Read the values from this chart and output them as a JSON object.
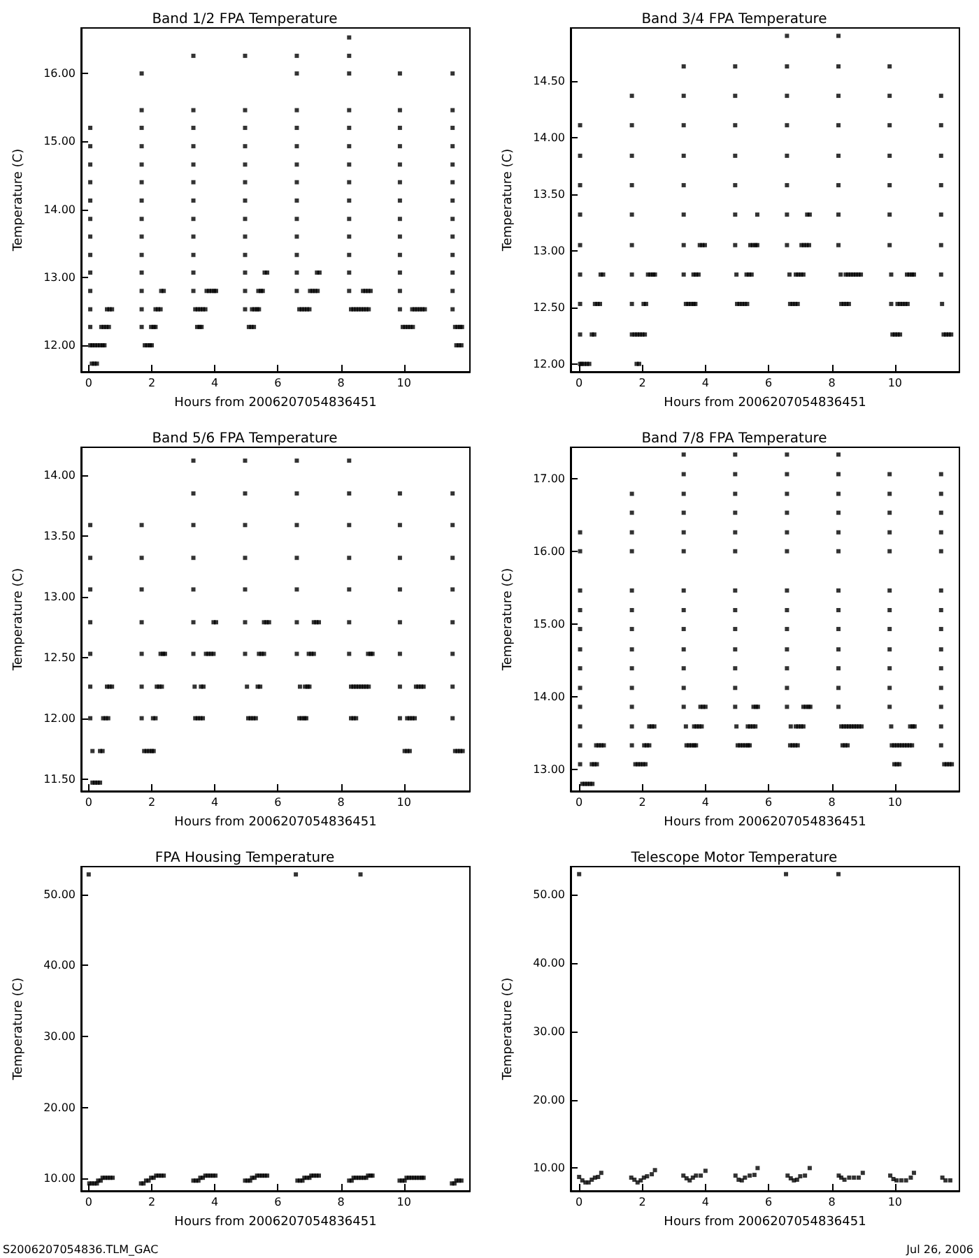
{
  "chart_data": [
    {
      "type": "scatter",
      "title": "Band 1/2 FPA Temperature",
      "xlabel": "Hours from 2006207054836451",
      "ylabel": "Temperature (C)",
      "marker": "square",
      "color": "#000000",
      "xlim": [
        -0.24,
        12.09
      ],
      "xticks": [
        0,
        2,
        4,
        6,
        8,
        10
      ],
      "ylim": [
        11.61,
        16.67
      ],
      "yticks": [
        {
          "value": 12,
          "label": "12.00"
        },
        {
          "value": 13,
          "label": "13.00"
        },
        {
          "value": 14,
          "label": "14.00"
        },
        {
          "value": 15,
          "label": "15.00"
        },
        {
          "value": 16,
          "label": "16.00"
        }
      ],
      "x": [
        0.05,
        0.05,
        0.05,
        0.05,
        0.05,
        0.05,
        0.05,
        0.05,
        0.05,
        0.05,
        0.05,
        0.05,
        0.05,
        0.1,
        0.18,
        0.26,
        0.12,
        0.2,
        0.28,
        0.36,
        0.44,
        0.5,
        0.4,
        0.48,
        0.56,
        0.64,
        0.58,
        0.66,
        0.74,
        1.68,
        1.68,
        1.68,
        1.68,
        1.68,
        1.68,
        1.68,
        1.68,
        1.68,
        1.68,
        1.68,
        1.68,
        1.68,
        1.68,
        1.78,
        1.86,
        1.94,
        2.0,
        1.98,
        2.06,
        2.12,
        2.12,
        2.2,
        2.28,
        2.3,
        2.38,
        3.32,
        3.32,
        3.32,
        3.32,
        3.32,
        3.32,
        3.32,
        3.32,
        3.32,
        3.32,
        3.32,
        3.32,
        3.38,
        3.46,
        3.54,
        3.62,
        3.7,
        3.44,
        3.52,
        3.58,
        3.74,
        3.82,
        3.9,
        3.98,
        4.04,
        4.96,
        4.96,
        4.96,
        4.96,
        4.96,
        4.96,
        4.96,
        4.96,
        4.96,
        4.96,
        4.96,
        4.96,
        4.96,
        5.08,
        5.16,
        5.24,
        5.18,
        5.26,
        5.34,
        5.4,
        5.38,
        5.46,
        5.52,
        5.58,
        5.66,
        6.6,
        6.6,
        6.6,
        6.6,
        6.6,
        6.6,
        6.6,
        6.6,
        6.6,
        6.6,
        6.6,
        6.6,
        6.6,
        6.68,
        6.76,
        6.84,
        6.92,
        7.0,
        7.02,
        7.1,
        7.18,
        7.26,
        7.24,
        7.32,
        8.26,
        8.26,
        8.26,
        8.26,
        8.26,
        8.26,
        8.26,
        8.26,
        8.26,
        8.26,
        8.26,
        8.26,
        8.26,
        8.26,
        8.32,
        8.4,
        8.48,
        8.56,
        8.64,
        8.72,
        8.8,
        8.88,
        8.7,
        8.78,
        8.86,
        8.94,
        9.87,
        9.87,
        9.87,
        9.87,
        9.87,
        9.87,
        9.87,
        9.87,
        9.87,
        9.87,
        9.87,
        9.87,
        9.87,
        9.96,
        10.04,
        10.12,
        10.2,
        10.28,
        10.26,
        10.34,
        10.42,
        10.5,
        10.58,
        10.66,
        11.54,
        11.54,
        11.54,
        11.54,
        11.54,
        11.54,
        11.54,
        11.54,
        11.54,
        11.54,
        11.54,
        11.54,
        11.54,
        11.62,
        11.7,
        11.78,
        11.84,
        11.66,
        11.74,
        11.82
      ],
      "values": [
        15.2,
        14.93,
        14.66,
        14.4,
        14.13,
        13.86,
        13.6,
        13.33,
        13.07,
        12.8,
        12.53,
        12.27,
        12.0,
        11.73,
        11.73,
        11.73,
        12.0,
        12.0,
        12.0,
        12.0,
        12.0,
        12.0,
        12.27,
        12.27,
        12.27,
        12.27,
        12.53,
        12.53,
        12.53,
        16.0,
        15.46,
        15.2,
        14.93,
        14.66,
        14.4,
        14.13,
        13.86,
        13.6,
        13.33,
        13.07,
        12.8,
        12.53,
        12.27,
        12.0,
        12.0,
        12.0,
        12.0,
        12.27,
        12.27,
        12.27,
        12.53,
        12.53,
        12.53,
        12.8,
        12.8,
        16.26,
        15.46,
        15.2,
        14.93,
        14.66,
        14.4,
        14.13,
        13.86,
        13.6,
        13.33,
        13.07,
        12.8,
        12.53,
        12.53,
        12.53,
        12.53,
        12.53,
        12.27,
        12.27,
        12.27,
        12.8,
        12.8,
        12.8,
        12.8,
        12.8,
        16.26,
        15.46,
        15.2,
        14.93,
        14.66,
        14.4,
        14.13,
        13.86,
        13.6,
        13.33,
        13.07,
        12.8,
        12.53,
        12.27,
        12.27,
        12.27,
        12.53,
        12.53,
        12.53,
        12.53,
        12.8,
        12.8,
        12.8,
        13.07,
        13.07,
        16.26,
        16.0,
        15.46,
        15.2,
        14.93,
        14.66,
        14.4,
        14.13,
        13.86,
        13.6,
        13.33,
        13.07,
        12.8,
        12.53,
        12.53,
        12.53,
        12.53,
        12.53,
        12.8,
        12.8,
        12.8,
        12.8,
        13.07,
        13.07,
        16.53,
        16.26,
        16.0,
        15.46,
        15.2,
        14.93,
        14.66,
        14.4,
        14.13,
        13.86,
        13.6,
        13.33,
        13.07,
        12.8,
        12.53,
        12.53,
        12.53,
        12.53,
        12.53,
        12.53,
        12.53,
        12.53,
        12.8,
        12.8,
        12.8,
        12.8,
        16.0,
        15.46,
        15.2,
        14.93,
        14.66,
        14.4,
        14.13,
        13.86,
        13.6,
        13.33,
        13.07,
        12.8,
        12.53,
        12.27,
        12.27,
        12.27,
        12.27,
        12.27,
        12.53,
        12.53,
        12.53,
        12.53,
        12.53,
        12.53,
        16.0,
        15.46,
        15.2,
        14.93,
        14.66,
        14.4,
        14.13,
        13.86,
        13.6,
        13.33,
        13.07,
        12.8,
        12.53,
        12.27,
        12.27,
        12.27,
        12.27,
        12.0,
        12.0,
        12.0
      ]
    },
    {
      "type": "scatter",
      "title": "Band 3/4 FPA Temperature",
      "xlabel": "Hours from 2006207054836451",
      "ylabel": "Temperature (C)",
      "marker": "square",
      "color": "#000000",
      "xlim": [
        -0.27,
        12.04
      ],
      "xticks": [
        0,
        2,
        4,
        6,
        8,
        10
      ],
      "ylim": [
        11.93,
        14.97
      ],
      "yticks": [
        {
          "value": 12,
          "label": "12.00"
        },
        {
          "value": 12.5,
          "label": "12.50"
        },
        {
          "value": 13,
          "label": "13.00"
        },
        {
          "value": 13.5,
          "label": "13.50"
        },
        {
          "value": 14,
          "label": "14.00"
        },
        {
          "value": 14.5,
          "label": "14.50"
        }
      ],
      "x": [
        0.03,
        0.03,
        0.03,
        0.03,
        0.03,
        0.03,
        0.03,
        0.03,
        0.03,
        0.08,
        0.16,
        0.24,
        0.32,
        0.4,
        0.48,
        0.5,
        0.58,
        0.66,
        0.68,
        0.76,
        1.67,
        1.67,
        1.67,
        1.67,
        1.67,
        1.67,
        1.67,
        1.67,
        1.67,
        1.82,
        1.9,
        1.76,
        1.84,
        1.92,
        2.0,
        2.08,
        2.04,
        2.12,
        2.18,
        2.26,
        2.34,
        2.4,
        3.31,
        3.31,
        3.31,
        3.31,
        3.31,
        3.31,
        3.31,
        3.31,
        3.38,
        3.46,
        3.54,
        3.62,
        3.68,
        3.62,
        3.7,
        3.78,
        3.82,
        3.9,
        3.98,
        4.94,
        4.94,
        4.94,
        4.94,
        4.94,
        4.94,
        4.94,
        4.98,
        5.0,
        5.08,
        5.16,
        5.24,
        5.32,
        5.3,
        5.38,
        5.46,
        5.42,
        5.5,
        5.58,
        5.64,
        5.64,
        6.58,
        6.58,
        6.58,
        6.58,
        6.58,
        6.58,
        6.58,
        6.58,
        6.68,
        6.76,
        6.84,
        6.92,
        6.66,
        6.86,
        6.94,
        7.02,
        7.1,
        7.04,
        7.12,
        7.2,
        7.28,
        7.22,
        7.3,
        8.21,
        8.21,
        8.21,
        8.21,
        8.21,
        8.21,
        8.21,
        8.21,
        8.3,
        8.38,
        8.46,
        8.54,
        8.28,
        8.44,
        8.52,
        8.6,
        8.68,
        8.76,
        8.84,
        8.92,
        9.83,
        9.83,
        9.83,
        9.83,
        9.83,
        9.83,
        9.83,
        9.88,
        9.88,
        9.92,
        10.0,
        10.08,
        10.16,
        10.08,
        10.16,
        10.24,
        10.32,
        10.4,
        10.38,
        10.46,
        10.54,
        10.6,
        11.46,
        11.46,
        11.46,
        11.46,
        11.46,
        11.46,
        11.46,
        11.49,
        11.54,
        11.62,
        11.7,
        11.78
      ],
      "values": [
        14.11,
        13.84,
        13.58,
        13.32,
        13.05,
        12.79,
        12.53,
        12.26,
        12.0,
        12.0,
        12.0,
        12.0,
        12.0,
        12.26,
        12.26,
        12.53,
        12.53,
        12.53,
        12.79,
        12.79,
        14.37,
        14.11,
        13.84,
        13.58,
        13.32,
        13.05,
        12.79,
        12.53,
        12.26,
        12.0,
        12.0,
        12.26,
        12.26,
        12.26,
        12.26,
        12.26,
        12.53,
        12.53,
        12.79,
        12.79,
        12.79,
        12.79,
        14.63,
        14.37,
        14.11,
        13.84,
        13.58,
        13.32,
        13.05,
        12.79,
        12.53,
        12.53,
        12.53,
        12.53,
        12.53,
        12.79,
        12.79,
        12.79,
        13.05,
        13.05,
        13.05,
        14.63,
        14.37,
        14.11,
        13.84,
        13.58,
        13.32,
        13.05,
        12.79,
        12.53,
        12.53,
        12.53,
        12.53,
        12.53,
        12.79,
        12.79,
        12.79,
        13.05,
        13.05,
        13.05,
        13.05,
        13.32,
        14.9,
        14.63,
        14.37,
        14.11,
        13.84,
        13.58,
        13.32,
        13.05,
        12.53,
        12.53,
        12.53,
        12.53,
        12.79,
        12.79,
        12.79,
        12.79,
        12.79,
        13.05,
        13.05,
        13.05,
        13.05,
        13.32,
        13.32,
        14.9,
        14.63,
        14.37,
        14.11,
        13.84,
        13.58,
        13.32,
        13.05,
        12.53,
        12.53,
        12.53,
        12.53,
        12.79,
        12.79,
        12.79,
        12.79,
        12.79,
        12.79,
        12.79,
        12.79,
        14.63,
        14.37,
        14.11,
        13.84,
        13.58,
        13.32,
        13.05,
        12.79,
        12.53,
        12.26,
        12.26,
        12.26,
        12.26,
        12.53,
        12.53,
        12.53,
        12.53,
        12.53,
        12.79,
        12.79,
        12.79,
        12.79,
        14.37,
        14.11,
        13.84,
        13.58,
        13.32,
        13.05,
        12.79,
        12.53,
        12.26,
        12.26,
        12.26,
        12.26
      ]
    },
    {
      "type": "scatter",
      "title": "Band 5/6 FPA Temperature",
      "xlabel": "Hours from 2006207054836451",
      "ylabel": "Temperature (C)",
      "marker": "square",
      "color": "#000000",
      "xlim": [
        -0.24,
        12.09
      ],
      "xticks": [
        0,
        2,
        4,
        6,
        8,
        10
      ],
      "ylim": [
        11.4,
        14.23
      ],
      "yticks": [
        {
          "value": 11.5,
          "label": "11.50"
        },
        {
          "value": 12,
          "label": "12.00"
        },
        {
          "value": 12.5,
          "label": "12.50"
        },
        {
          "value": 13,
          "label": "13.00"
        },
        {
          "value": 13.5,
          "label": "13.50"
        },
        {
          "value": 14,
          "label": "14.00"
        }
      ],
      "x": [
        0.05,
        0.05,
        0.05,
        0.05,
        0.05,
        0.05,
        0.05,
        0.12,
        0.2,
        0.28,
        0.36,
        0.12,
        0.36,
        0.44,
        0.46,
        0.54,
        0.62,
        0.58,
        0.66,
        0.74,
        1.68,
        1.68,
        1.68,
        1.68,
        1.68,
        1.68,
        1.68,
        1.76,
        1.84,
        1.92,
        2.0,
        2.06,
        2.04,
        2.12,
        2.16,
        2.24,
        2.32,
        2.28,
        2.36,
        2.42,
        3.32,
        3.32,
        3.32,
        3.32,
        3.32,
        3.32,
        3.32,
        3.36,
        3.38,
        3.46,
        3.54,
        3.62,
        3.56,
        3.64,
        3.72,
        3.8,
        3.88,
        3.96,
        3.96,
        4.04,
        4.96,
        4.96,
        4.96,
        4.96,
        4.96,
        4.96,
        4.96,
        5.02,
        5.06,
        5.14,
        5.22,
        5.3,
        5.36,
        5.44,
        5.4,
        5.48,
        5.56,
        5.56,
        5.64,
        5.72,
        6.6,
        6.6,
        6.6,
        6.6,
        6.6,
        6.6,
        6.6,
        6.68,
        6.76,
        6.84,
        6.9,
        6.7,
        6.86,
        6.94,
        7.0,
        6.98,
        7.06,
        7.14,
        7.14,
        7.22,
        7.3,
        8.26,
        8.26,
        8.26,
        8.26,
        8.26,
        8.26,
        8.26,
        8.32,
        8.4,
        8.48,
        8.32,
        8.4,
        8.48,
        8.56,
        8.64,
        8.72,
        8.8,
        8.88,
        8.86,
        8.94,
        9.0,
        9.87,
        9.87,
        9.87,
        9.87,
        9.87,
        9.87,
        9.87,
        9.87,
        10.02,
        10.1,
        10.18,
        10.1,
        10.18,
        10.26,
        10.34,
        10.38,
        10.46,
        10.54,
        10.62,
        11.54,
        11.54,
        11.54,
        11.54,
        11.54,
        11.54,
        11.54,
        11.54,
        11.62,
        11.7,
        11.78,
        11.86
      ],
      "values": [
        13.59,
        13.32,
        13.06,
        12.79,
        12.53,
        12.26,
        12.0,
        11.47,
        11.47,
        11.47,
        11.47,
        11.73,
        11.73,
        11.73,
        12.0,
        12.0,
        12.0,
        12.26,
        12.26,
        12.26,
        13.59,
        13.32,
        13.06,
        12.79,
        12.53,
        12.26,
        12.0,
        11.73,
        11.73,
        11.73,
        11.73,
        11.73,
        12.0,
        12.0,
        12.26,
        12.26,
        12.26,
        12.53,
        12.53,
        12.53,
        14.12,
        13.85,
        13.59,
        13.32,
        13.06,
        12.79,
        12.53,
        12.26,
        12.0,
        12.0,
        12.0,
        12.0,
        12.26,
        12.26,
        12.53,
        12.53,
        12.53,
        12.53,
        12.79,
        12.79,
        14.12,
        13.85,
        13.59,
        13.32,
        13.06,
        12.79,
        12.53,
        12.26,
        12.0,
        12.0,
        12.0,
        12.0,
        12.26,
        12.26,
        12.53,
        12.53,
        12.53,
        12.79,
        12.79,
        12.79,
        14.12,
        13.85,
        13.59,
        13.32,
        13.06,
        12.79,
        12.53,
        12.0,
        12.0,
        12.0,
        12.0,
        12.26,
        12.26,
        12.26,
        12.26,
        12.53,
        12.53,
        12.53,
        12.79,
        12.79,
        12.79,
        14.12,
        13.85,
        13.59,
        13.32,
        13.06,
        12.79,
        12.53,
        12.0,
        12.0,
        12.0,
        12.26,
        12.26,
        12.26,
        12.26,
        12.26,
        12.26,
        12.26,
        12.26,
        12.53,
        12.53,
        12.53,
        13.85,
        13.59,
        13.32,
        13.06,
        12.79,
        12.53,
        12.26,
        12.0,
        11.73,
        11.73,
        11.73,
        12.0,
        12.0,
        12.0,
        12.0,
        12.26,
        12.26,
        12.26,
        12.26,
        13.85,
        13.59,
        13.32,
        13.06,
        12.79,
        12.53,
        12.26,
        12.0,
        11.73,
        11.73,
        11.73,
        11.73
      ]
    },
    {
      "type": "scatter",
      "title": "Band 7/8 FPA Temperature",
      "xlabel": "Hours from 2006207054836451",
      "ylabel": "Temperature (C)",
      "marker": "square",
      "color": "#000000",
      "xlim": [
        -0.27,
        12.04
      ],
      "xticks": [
        0,
        2,
        4,
        6,
        8,
        10
      ],
      "ylim": [
        12.7,
        17.43
      ],
      "yticks": [
        {
          "value": 13,
          "label": "13.00"
        },
        {
          "value": 14,
          "label": "14.00"
        },
        {
          "value": 15,
          "label": "15.00"
        },
        {
          "value": 16,
          "label": "16.00"
        },
        {
          "value": 17,
          "label": "17.00"
        }
      ],
      "x": [
        0.03,
        0.03,
        0.03,
        0.03,
        0.03,
        0.03,
        0.03,
        0.03,
        0.03,
        0.03,
        0.03,
        0.03,
        0.1,
        0.18,
        0.26,
        0.34,
        0.42,
        0.4,
        0.48,
        0.56,
        0.54,
        0.62,
        0.7,
        0.78,
        1.67,
        1.67,
        1.67,
        1.67,
        1.67,
        1.67,
        1.67,
        1.67,
        1.67,
        1.67,
        1.67,
        1.67,
        1.67,
        1.78,
        1.86,
        1.94,
        2.02,
        2.1,
        2.06,
        2.14,
        2.22,
        2.22,
        2.3,
        2.38,
        3.31,
        3.31,
        3.31,
        3.31,
        3.31,
        3.31,
        3.31,
        3.31,
        3.31,
        3.31,
        3.31,
        3.31,
        3.31,
        3.38,
        3.4,
        3.48,
        3.56,
        3.64,
        3.7,
        3.64,
        3.72,
        3.8,
        3.88,
        3.84,
        3.92,
        4.0,
        4.94,
        4.94,
        4.94,
        4.94,
        4.94,
        4.94,
        4.94,
        4.94,
        4.94,
        4.94,
        4.94,
        4.94,
        4.94,
        4.98,
        5.02,
        5.1,
        5.18,
        5.26,
        5.34,
        5.4,
        5.34,
        5.42,
        5.5,
        5.58,
        5.52,
        5.6,
        5.66,
        6.58,
        6.58,
        6.58,
        6.58,
        6.58,
        6.58,
        6.58,
        6.58,
        6.58,
        6.58,
        6.58,
        6.58,
        6.58,
        6.68,
        6.76,
        6.84,
        6.92,
        6.7,
        6.86,
        6.94,
        7.02,
        7.1,
        7.1,
        7.18,
        7.26,
        7.32,
        8.21,
        8.21,
        8.21,
        8.21,
        8.21,
        8.21,
        8.21,
        8.21,
        8.21,
        8.21,
        8.21,
        8.21,
        8.21,
        8.3,
        8.38,
        8.46,
        8.54,
        8.62,
        8.7,
        8.78,
        8.86,
        8.94,
        8.34,
        8.42,
        8.5,
        9.83,
        9.83,
        9.83,
        9.83,
        9.83,
        9.83,
        9.83,
        9.83,
        9.83,
        9.83,
        9.83,
        9.83,
        9.88,
        9.9,
        9.98,
        10.06,
        10.14,
        10.22,
        10.3,
        10.38,
        10.46,
        10.54,
        9.98,
        10.06,
        10.14,
        10.48,
        10.56,
        10.62,
        11.46,
        11.46,
        11.46,
        11.46,
        11.46,
        11.46,
        11.46,
        11.46,
        11.46,
        11.46,
        11.46,
        11.46,
        11.46,
        11.46,
        11.56,
        11.64,
        11.72,
        11.8
      ],
      "values": [
        16.26,
        16.0,
        15.46,
        15.19,
        14.93,
        14.65,
        14.39,
        14.12,
        13.86,
        13.59,
        13.33,
        13.07,
        12.8,
        12.8,
        12.8,
        12.8,
        12.8,
        13.07,
        13.07,
        13.07,
        13.33,
        13.33,
        13.33,
        13.33,
        16.79,
        16.53,
        16.26,
        16.0,
        15.46,
        15.19,
        14.93,
        14.65,
        14.39,
        14.12,
        13.86,
        13.59,
        13.33,
        13.07,
        13.07,
        13.07,
        13.07,
        13.07,
        13.33,
        13.33,
        13.33,
        13.59,
        13.59,
        13.59,
        17.33,
        17.06,
        16.79,
        16.53,
        16.26,
        16.0,
        15.46,
        15.19,
        14.93,
        14.65,
        14.39,
        14.12,
        13.86,
        13.59,
        13.33,
        13.33,
        13.33,
        13.33,
        13.33,
        13.59,
        13.59,
        13.59,
        13.59,
        13.86,
        13.86,
        13.86,
        17.33,
        17.06,
        16.79,
        16.53,
        16.26,
        16.0,
        15.46,
        15.19,
        14.93,
        14.65,
        14.39,
        14.12,
        13.86,
        13.59,
        13.33,
        13.33,
        13.33,
        13.33,
        13.33,
        13.33,
        13.59,
        13.59,
        13.59,
        13.59,
        13.86,
        13.86,
        13.86,
        17.33,
        17.06,
        16.79,
        16.53,
        16.26,
        16.0,
        15.46,
        15.19,
        14.93,
        14.65,
        14.39,
        14.12,
        13.86,
        13.33,
        13.33,
        13.33,
        13.33,
        13.59,
        13.59,
        13.59,
        13.59,
        13.59,
        13.86,
        13.86,
        13.86,
        13.86,
        17.33,
        17.06,
        16.79,
        16.53,
        16.26,
        16.0,
        15.46,
        15.19,
        14.93,
        14.65,
        14.39,
        14.12,
        13.86,
        13.59,
        13.59,
        13.59,
        13.59,
        13.59,
        13.59,
        13.59,
        13.59,
        13.59,
        13.33,
        13.33,
        13.33,
        17.06,
        16.79,
        16.53,
        16.26,
        16.0,
        15.46,
        15.19,
        14.93,
        14.65,
        14.39,
        14.12,
        13.86,
        13.59,
        13.33,
        13.33,
        13.33,
        13.33,
        13.33,
        13.33,
        13.33,
        13.33,
        13.33,
        13.07,
        13.07,
        13.07,
        13.59,
        13.59,
        13.59,
        17.06,
        16.79,
        16.53,
        16.26,
        16.0,
        15.46,
        15.19,
        14.93,
        14.65,
        14.39,
        14.12,
        13.86,
        13.59,
        13.33,
        13.07,
        13.07,
        13.07,
        13.07
      ]
    },
    {
      "type": "scatter",
      "title": "FPA Housing Temperature",
      "xlabel": "Hours from 2006207054836451",
      "ylabel": "Temperature (C)",
      "marker": "square",
      "color": "#000000",
      "annotations": [
        "S2006207054836.TLM_GAC"
      ],
      "xlim": [
        -0.24,
        12.09
      ],
      "xticks": [
        0,
        2,
        4,
        6,
        8,
        10
      ],
      "ylim": [
        8.25,
        53.9
      ],
      "yticks": [
        {
          "value": 10,
          "label": "10.00"
        },
        {
          "value": 20,
          "label": "20.00"
        },
        {
          "value": 30,
          "label": "30.00"
        },
        {
          "value": 40,
          "label": "40.00"
        },
        {
          "value": 50,
          "label": "50.00"
        }
      ],
      "x": [
        0.0,
        6.57,
        8.62,
        0.02,
        0.1,
        0.18,
        0.26,
        0.3,
        0.38,
        0.44,
        0.52,
        0.6,
        0.68,
        0.76,
        1.66,
        1.74,
        1.82,
        1.9,
        1.98,
        2.06,
        2.14,
        2.22,
        2.3,
        2.38,
        3.32,
        3.4,
        3.48,
        3.54,
        3.62,
        3.7,
        3.78,
        3.86,
        3.94,
        4.02,
        4.96,
        5.04,
        5.12,
        5.18,
        5.26,
        5.34,
        5.42,
        5.5,
        5.58,
        5.66,
        6.62,
        6.7,
        6.78,
        6.84,
        6.92,
        7.0,
        7.06,
        7.14,
        7.22,
        7.3,
        8.26,
        8.34,
        8.4,
        8.48,
        8.56,
        8.64,
        8.72,
        8.8,
        8.86,
        8.94,
        9.0,
        9.86,
        9.94,
        10.02,
        10.08,
        10.16,
        10.24,
        10.32,
        10.4,
        10.48,
        10.56,
        10.62,
        11.52,
        11.6,
        11.66,
        11.74,
        11.82
      ],
      "values": [
        52.8,
        52.8,
        52.8,
        9.3,
        9.3,
        9.3,
        9.3,
        9.7,
        9.7,
        10.1,
        10.1,
        10.1,
        10.1,
        10.1,
        9.3,
        9.3,
        9.7,
        9.7,
        10.1,
        10.1,
        10.4,
        10.4,
        10.4,
        10.4,
        9.7,
        9.7,
        9.7,
        10.1,
        10.1,
        10.4,
        10.4,
        10.4,
        10.4,
        10.4,
        9.7,
        9.7,
        9.7,
        10.1,
        10.1,
        10.4,
        10.4,
        10.4,
        10.4,
        10.4,
        9.7,
        9.7,
        9.7,
        10.1,
        10.1,
        10.1,
        10.4,
        10.4,
        10.4,
        10.4,
        9.7,
        9.7,
        10.1,
        10.1,
        10.1,
        10.1,
        10.1,
        10.1,
        10.4,
        10.4,
        10.4,
        9.7,
        9.7,
        9.7,
        10.1,
        10.1,
        10.1,
        10.1,
        10.1,
        10.1,
        10.1,
        10.1,
        9.3,
        9.3,
        9.7,
        9.7,
        9.7
      ]
    },
    {
      "type": "scatter",
      "title": "Telescope Motor Temperature",
      "xlabel": "Hours from 2006207054836451",
      "ylabel": "Temperature (C)",
      "marker": "square",
      "color": "#000000",
      "annotations": [
        "Jul 26, 2006"
      ],
      "xlim": [
        -0.27,
        12.04
      ],
      "xticks": [
        0,
        2,
        4,
        6,
        8,
        10
      ],
      "ylim": [
        6.66,
        54.1
      ],
      "yticks": [
        {
          "value": 10,
          "label": "10.00"
        },
        {
          "value": 20,
          "label": "20.00"
        },
        {
          "value": 30,
          "label": "30.00"
        },
        {
          "value": 40,
          "label": "40.00"
        },
        {
          "value": 50,
          "label": "50.00"
        }
      ],
      "x": [
        0.0,
        6.55,
        8.21,
        0.0,
        0.1,
        0.2,
        0.3,
        0.4,
        0.5,
        0.6,
        0.7,
        1.65,
        1.75,
        1.85,
        1.95,
        2.05,
        2.15,
        2.3,
        2.4,
        3.3,
        3.4,
        3.5,
        3.6,
        3.7,
        3.85,
        4.0,
        4.95,
        5.05,
        5.15,
        5.25,
        5.4,
        5.55,
        5.65,
        6.6,
        6.7,
        6.8,
        6.9,
        7.0,
        7.15,
        7.3,
        8.22,
        8.3,
        8.4,
        8.55,
        8.7,
        8.85,
        8.98,
        9.85,
        9.95,
        10.05,
        10.2,
        10.35,
        10.5,
        10.6,
        11.5,
        11.6,
        11.75
      ],
      "values": [
        53.0,
        53.0,
        53.0,
        8.7,
        8.2,
        7.9,
        7.9,
        8.3,
        8.6,
        8.7,
        9.3,
        8.6,
        8.3,
        7.9,
        8.2,
        8.6,
        8.8,
        9.1,
        9.7,
        8.9,
        8.5,
        8.2,
        8.6,
        8.9,
        8.9,
        9.6,
        8.9,
        8.3,
        8.2,
        8.6,
        8.9,
        9.0,
        10.0,
        8.9,
        8.5,
        8.2,
        8.3,
        8.8,
        8.9,
        10.0,
        8.9,
        8.6,
        8.3,
        8.6,
        8.6,
        8.6,
        9.3,
        8.9,
        8.4,
        8.2,
        8.2,
        8.2,
        8.6,
        9.3,
        8.6,
        8.2,
        8.2
      ]
    }
  ]
}
